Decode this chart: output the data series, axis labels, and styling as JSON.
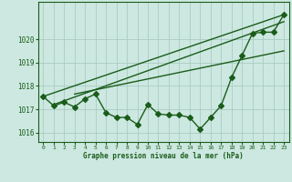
{
  "x": [
    0,
    1,
    2,
    3,
    4,
    5,
    6,
    7,
    8,
    9,
    10,
    11,
    12,
    13,
    14,
    15,
    16,
    17,
    18,
    19,
    20,
    21,
    22,
    23
  ],
  "pressure_line": [
    1017.55,
    1017.15,
    1017.3,
    1017.1,
    1017.45,
    1017.65,
    1016.85,
    1016.65,
    1016.65,
    1016.35,
    1017.2,
    1016.8,
    1016.75,
    1016.75,
    1016.65,
    1016.15,
    1016.65,
    1017.15,
    1018.35,
    1019.3,
    1020.25,
    1020.3,
    1020.3,
    1021.05
  ],
  "trend1_x": [
    0,
    23
  ],
  "trend1_y": [
    1017.55,
    1021.05
  ],
  "trend2_x": [
    1,
    23
  ],
  "trend2_y": [
    1017.2,
    1020.75
  ],
  "trend3_x": [
    3,
    23
  ],
  "trend3_y": [
    1017.65,
    1019.5
  ],
  "background_color": "#cce8e0",
  "grid_color": "#aaccC4",
  "line_color": "#1a5c1a",
  "ylim_min": 1015.6,
  "ylim_max": 1021.6,
  "yticks": [
    1016,
    1017,
    1018,
    1019,
    1020
  ],
  "xticks": [
    0,
    1,
    2,
    3,
    4,
    5,
    6,
    7,
    8,
    9,
    10,
    11,
    12,
    13,
    14,
    15,
    16,
    17,
    18,
    19,
    20,
    21,
    22,
    23
  ],
  "xlabel": "Graphe pression niveau de la mer (hPa)",
  "markersize": 3,
  "linewidth": 1.0
}
